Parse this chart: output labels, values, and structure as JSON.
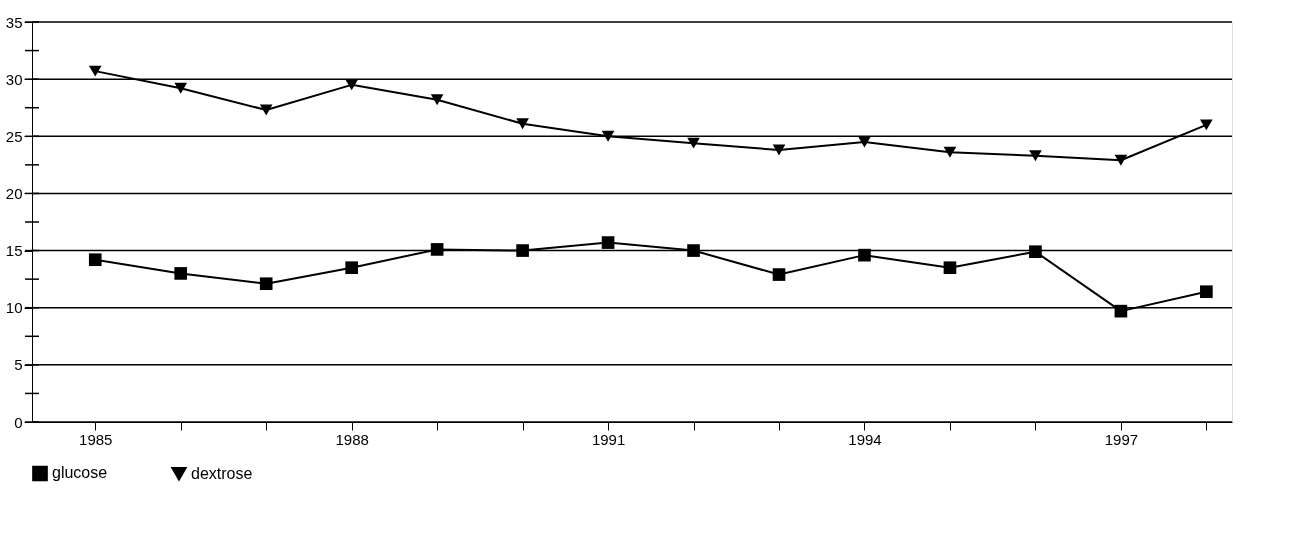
{
  "chart_data": {
    "type": "line",
    "x": [
      1985,
      1986,
      1987,
      1988,
      1989,
      1990,
      1991,
      1992,
      1993,
      1994,
      1995,
      1996,
      1997,
      1998
    ],
    "series": [
      {
        "name": "glucose",
        "color": "#000000",
        "marker": "square",
        "values": [
          14.2,
          13.0,
          12.1,
          13.5,
          15.1,
          15.0,
          15.7,
          15.0,
          12.9,
          14.6,
          13.5,
          14.9,
          9.7,
          11.4
        ]
      },
      {
        "name": "dextrose",
        "color": "#000000",
        "marker": "triangle",
        "values": [
          30.7,
          29.2,
          27.3,
          29.5,
          28.2,
          26.1,
          25.0,
          24.4,
          23.8,
          24.5,
          23.6,
          23.3,
          22.9,
          26.0
        ]
      }
    ],
    "xlim": [
      1984.26,
      1998.3
    ],
    "xticks": [
      1985,
      {
        "value": 1986,
        "label": null
      },
      {
        "value": 1987,
        "label": null
      },
      1988,
      {
        "value": 1989,
        "label": null
      },
      {
        "value": 1990,
        "label": null
      },
      1991,
      {
        "value": 1992,
        "label": null
      },
      {
        "value": 1993,
        "label": null
      },
      1994,
      {
        "value": 1995,
        "label": null
      },
      {
        "value": 1996,
        "label": null
      },
      1997,
      {
        "value": 1998,
        "label": null
      }
    ],
    "ylim": [
      0,
      35
    ],
    "yticks": [
      0,
      {
        "value": 2.5,
        "label": null
      },
      5,
      {
        "value": 7.5,
        "label": null
      },
      10,
      {
        "value": 12.5,
        "label": null
      },
      15,
      {
        "value": 17.5,
        "label": null
      },
      20,
      {
        "value": 22.5,
        "label": null
      },
      25,
      {
        "value": 27.5,
        "label": null
      },
      30,
      {
        "value": 32.5,
        "label": null
      },
      35
    ],
    "grid": "y",
    "legend": "bottom",
    "line_style": "solid"
  }
}
